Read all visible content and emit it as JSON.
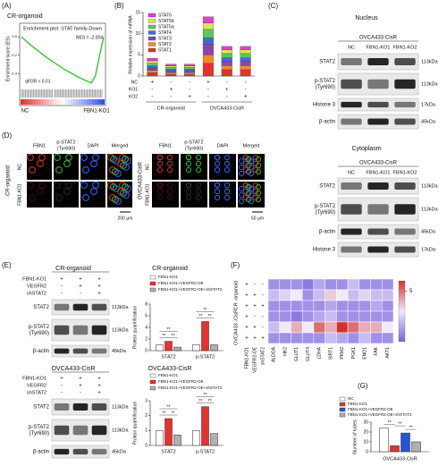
{
  "panel_labels": [
    "(A)",
    "(B)",
    "(C)",
    "(D)",
    "(E)",
    "(F)",
    "(G)"
  ],
  "blots": [
    {
      "title": "Nucleus",
      "subtitle": "OVCA433-CisR",
      "columns": [
        "NC",
        "FBN1-KO1",
        "FBN1-KO2"
      ],
      "rows": [
        {
          "label": "STAT2",
          "size": "113kDa"
        },
        {
          "label": "p-STAT2",
          "sublabel": "(Tyr690)",
          "size": "113kDa"
        },
        {
          "label": "Histone 3",
          "size": "17kDa"
        },
        {
          "label": "β-actin",
          "size": "45kDa"
        }
      ]
    },
    {
      "title": "Cytoplasm",
      "subtitle": "OVCA433-CisR",
      "columns": [
        "NC",
        "FBN1-KO1",
        "FBN1-KO2"
      ],
      "rows": [
        {
          "label": "STAT2",
          "size": "113kDa"
        },
        {
          "label": "p-STAT2",
          "sublabel": "(Tyr690)",
          "size": "113kDa"
        },
        {
          "label": "β-actin",
          "size": "45kDa"
        },
        {
          "label": "Histone 3",
          "size": "17kDa"
        }
      ]
    },
    {
      "title": "CR-organoid",
      "conditions": [
        {
          "name": "FBN1-KO1",
          "signs": [
            "+",
            "+",
            "+"
          ]
        },
        {
          "name": "VEGFR2",
          "signs": [
            "-",
            "+",
            "+"
          ]
        },
        {
          "name": "shSTAT2",
          "signs": [
            "-",
            "-",
            "+"
          ]
        }
      ],
      "rows": [
        {
          "label": "STAT2",
          "size": "113kDa"
        },
        {
          "label": "p-STAT2",
          "sublabel": "(Tyr690)",
          "size": "113kDa"
        },
        {
          "label": "β-actin",
          "size": "45kDa"
        }
      ]
    },
    {
      "title": "OVCA433-CisR",
      "conditions": [
        {
          "name": "FBN1-KO1",
          "signs": [
            "+",
            "+",
            "+"
          ]
        },
        {
          "name": "VEGFR2",
          "signs": [
            "-",
            "+",
            "+"
          ]
        },
        {
          "name": "shSTAT2",
          "signs": [
            "-",
            "-",
            "+"
          ]
        }
      ],
      "rows": [
        {
          "label": "STAT2",
          "size": "113kDa"
        },
        {
          "label": "p-STAT2",
          "sublabel": "(Tyr690)",
          "size": "113kDa"
        },
        {
          "label": "β-actin",
          "size": "45kDa"
        }
      ]
    }
  ],
  "immunofluorescence": {
    "channels": [
      "FBN1",
      "p-STAT2",
      "DAPI",
      "Merged"
    ],
    "channel_sublabel": "(Tyr690)",
    "panels": [
      {
        "sample": "CR-organoid",
        "rows": [
          "NC",
          "FBN1-KO1"
        ],
        "scale": "200 μm"
      },
      {
        "sample": "OVCA433-CisR",
        "rows": [
          "NC",
          "FBN1-KO1"
        ],
        "scale": "50 μm"
      }
    ]
  },
  "chart_data": [
    {
      "type": "line",
      "title": "CR-organoid",
      "subtitle": "Enrichment plot: STAT family-Down",
      "y_label": "Enrichment score (ES)",
      "annotations": [
        "NES = -2.004",
        "qFDR < 0.01"
      ],
      "x_labels": [
        "NC",
        "FBN1-KO1"
      ],
      "color": "#33c633",
      "x": [
        0,
        1,
        2,
        3,
        4,
        5,
        6,
        7,
        8,
        8.5,
        9,
        9.5,
        10
      ],
      "values": [
        0,
        -0.08,
        -0.15,
        -0.22,
        -0.28,
        -0.34,
        -0.39,
        -0.44,
        -0.48,
        -0.5,
        -0.42,
        -0.2,
        0
      ],
      "xlim": [
        0,
        10
      ],
      "ylim": [
        -0.55,
        0.05
      ],
      "yticks": [
        {
          "value": 0,
          "label": "0.0"
        },
        {
          "value": -0.2,
          "label": "-0.2"
        },
        {
          "value": -0.4,
          "label": "-0.4"
        }
      ]
    },
    {
      "type": "stacked_bar",
      "y_label": "Relative expression of mRNA",
      "categories": [
        null,
        null,
        null,
        null,
        null,
        null
      ],
      "group_labels": [
        "CR-organoid",
        "OVCA433-CisR"
      ],
      "conditions": [
        {
          "name": "NC",
          "signs": [
            "+",
            "-",
            "-",
            "+",
            "-",
            "-"
          ]
        },
        {
          "name": "KO1",
          "signs": [
            "-",
            "+",
            "-",
            "-",
            "+",
            "-"
          ]
        },
        {
          "name": "KO2",
          "signs": [
            "-",
            "-",
            "+",
            "-",
            "-",
            "+"
          ]
        }
      ],
      "series": [
        {
          "name": "STAT6",
          "color": "#e040d8",
          "values": [
            0.6,
            0.4,
            0.4,
            1.5,
            0.8,
            0.8
          ]
        },
        {
          "name": "STAT5b",
          "color": "#d9e84a",
          "values": [
            0.6,
            0.4,
            0.4,
            1.5,
            0.9,
            0.9
          ]
        },
        {
          "name": "STAT5a",
          "color": "#5cc85c",
          "values": [
            0.6,
            0.4,
            0.4,
            2,
            1,
            1
          ]
        },
        {
          "name": "STAT4",
          "color": "#3b6fd6",
          "values": [
            0.5,
            0.4,
            0.4,
            1.5,
            0.8,
            0.8
          ]
        },
        {
          "name": "STAT3",
          "color": "#8e44ad",
          "values": [
            0.6,
            0.4,
            0.4,
            2.5,
            1,
            1
          ]
        },
        {
          "name": "STAT2",
          "color": "#f28c28",
          "values": [
            0.5,
            0.4,
            0.4,
            2,
            1,
            1
          ]
        },
        {
          "name": "STAT1",
          "color": "#e8302a",
          "values": [
            0.8,
            0.4,
            0.4,
            3,
            1.5,
            1.5
          ]
        }
      ],
      "ylim": [
        0,
        15
      ],
      "yticks": [
        0,
        5,
        10,
        15
      ]
    },
    {
      "type": "bar",
      "title": "CR-organoid",
      "y_label": "Protein quantification",
      "categories": [
        "STAT2",
        "p-STAT2"
      ],
      "series": [
        {
          "name": "FBN1-KO1",
          "color": "#ffffff",
          "values": [
            1,
            1
          ]
        },
        {
          "name": "FBN1-KO1+VEGFR2-OE",
          "color": "#e8312f",
          "values": [
            1.6,
            5
          ]
        },
        {
          "name": "FBN1-KO1+VEGFR2-OE+shSTAT2",
          "color": "#b0b0b0",
          "values": [
            0.6,
            1
          ]
        }
      ],
      "ylim": [
        0,
        8
      ],
      "yticks": [
        0,
        2,
        4,
        6,
        8
      ],
      "significance": [
        [
          "**",
          "**",
          "**"
        ],
        [
          "**",
          "**",
          "**"
        ]
      ]
    },
    {
      "type": "bar",
      "title": "OVCA433-CisR",
      "y_label": "Protein quantification",
      "categories": [
        "STAT2",
        "p-STAT2"
      ],
      "series": [
        {
          "name": "FBN1-KO1",
          "color": "#ffffff",
          "values": [
            1,
            1
          ]
        },
        {
          "name": "FBN1-KO1+VEGFR2-OE",
          "color": "#e8312f",
          "values": [
            1.8,
            2.6
          ]
        },
        {
          "name": "FBN1-KO1+VEGFR2-OE+shSTAT2",
          "color": "#b0b0b0",
          "values": [
            0.7,
            0.8
          ]
        }
      ],
      "ylim": [
        0,
        3
      ],
      "yticks": [
        0,
        1,
        2,
        3
      ],
      "significance": [
        [
          "**",
          "**",
          "**"
        ],
        [
          "**",
          "**",
          "**"
        ]
      ]
    },
    {
      "type": "heatmap",
      "columns": [
        "ALDOA",
        "HK2",
        "GLUT1",
        "GLUT4",
        "LDHA",
        "SIRT1",
        "PKM2",
        "PGK1",
        "ENO1",
        "FAK",
        "AKT1"
      ],
      "group_labels": [
        "CR -organoid",
        "OVCA433 -CisR"
      ],
      "conditions": [
        {
          "name": "FBN1-KO1",
          "signs": [
            "+",
            "+",
            "+",
            "+",
            "+",
            "+"
          ]
        },
        {
          "name": "VEGFR2-OE",
          "signs": [
            "-",
            "+",
            "+",
            "-",
            "+",
            "+"
          ]
        },
        {
          "name": "shSTAT2",
          "signs": [
            "-",
            "-",
            "+",
            "-",
            "-",
            "+"
          ]
        }
      ],
      "values": [
        [
          1,
          1,
          1,
          0.5,
          1.5,
          1,
          1,
          2,
          1,
          1,
          1
        ],
        [
          2,
          2.5,
          3,
          1,
          2,
          3.5,
          3,
          2,
          2.5,
          2,
          2
        ],
        [
          1,
          1,
          1,
          1,
          1,
          1.5,
          1,
          1,
          1,
          1.5,
          1
        ],
        [
          1,
          1,
          0.5,
          1,
          1.5,
          2,
          1,
          1,
          1,
          1,
          1
        ],
        [
          2,
          3,
          4,
          3,
          5,
          4,
          6,
          5,
          4,
          4,
          3
        ],
        [
          1,
          1,
          1,
          1,
          1,
          2,
          1.5,
          1,
          2,
          1,
          1
        ]
      ],
      "zlim": [
        0,
        6
      ],
      "zticks": [
        5
      ],
      "colors": [
        "#7b61d9",
        "#f0eaff",
        "#d73027"
      ]
    },
    {
      "type": "bar",
      "y_label": "Number of tubes",
      "categories": [
        "OVCA433-CisR"
      ],
      "series": [
        {
          "name": "NC",
          "color": "#ffffff",
          "values": [
            24
          ]
        },
        {
          "name": "FBN1-KO1",
          "color": "#e8312f",
          "values": [
            6
          ]
        },
        {
          "name": "FBN1-KO1+VEGFR2-OE",
          "color": "#2356d6",
          "values": [
            19
          ]
        },
        {
          "name": "FBN1-KO1+VEGFR2-OE+shSTAT2",
          "color": "#b0b0b0",
          "values": [
            10
          ]
        }
      ],
      "ylim": [
        0,
        30
      ],
      "yticks": [
        0,
        10,
        20,
        30
      ],
      "significance": [
        "**",
        "**",
        "**"
      ]
    }
  ]
}
